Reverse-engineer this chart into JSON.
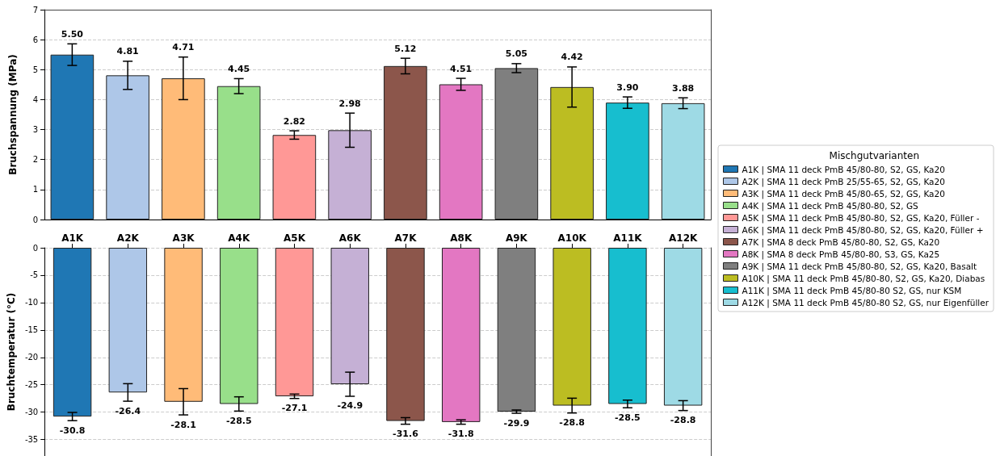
{
  "chart_data": [
    {
      "type": "bar",
      "ylabel": "Bruchspannung (MPa)",
      "categories": [
        null,
        null,
        null,
        null,
        null,
        null,
        null,
        null,
        null,
        null,
        null,
        null
      ],
      "stacked": true,
      "ylim": [
        0,
        7
      ],
      "yticks": [
        0,
        1,
        2,
        3,
        4,
        5,
        6,
        7
      ],
      "grid": "y",
      "tick_labels": "y",
      "legend": "right",
      "legend_title": "Mischgutvarianten",
      "series": [
        {
          "name": "A1K | SMA 11 deck PmB 45/80-80, S2, GS, Ka20",
          "color": "#1f77b4",
          "values": [
            5.5,
            null,
            null,
            null,
            null,
            null,
            null,
            null,
            null,
            null,
            null,
            null
          ],
          "errors": [
            0.36,
            null,
            null,
            null,
            null,
            null,
            null,
            null,
            null,
            null,
            null,
            null
          ],
          "value_labels": [
            "5.50",
            null,
            null,
            null,
            null,
            null,
            null,
            null,
            null,
            null,
            null,
            null
          ]
        },
        {
          "name": "A2K | SMA 11 deck PmB 25/55-65, S2, GS, Ka20",
          "color": "#aec7e8",
          "values": [
            null,
            4.81,
            null,
            null,
            null,
            null,
            null,
            null,
            null,
            null,
            null,
            null
          ],
          "errors": [
            null,
            0.47,
            null,
            null,
            null,
            null,
            null,
            null,
            null,
            null,
            null,
            null
          ],
          "value_labels": [
            null,
            "4.81",
            null,
            null,
            null,
            null,
            null,
            null,
            null,
            null,
            null,
            null
          ]
        },
        {
          "name": "A3K | SMA 11 deck PmB 45/80-65, S2, GS, Ka20",
          "color": "#ffbb78",
          "values": [
            null,
            null,
            4.71,
            null,
            null,
            null,
            null,
            null,
            null,
            null,
            null,
            null
          ],
          "errors": [
            null,
            null,
            0.71,
            null,
            null,
            null,
            null,
            null,
            null,
            null,
            null,
            null
          ],
          "value_labels": [
            null,
            null,
            "4.71",
            null,
            null,
            null,
            null,
            null,
            null,
            null,
            null,
            null
          ]
        },
        {
          "name": "A4K | SMA 11 deck PmB 45/80-80, S2, GS",
          "color": "#98df8a",
          "values": [
            null,
            null,
            null,
            4.45,
            null,
            null,
            null,
            null,
            null,
            null,
            null,
            null
          ],
          "errors": [
            null,
            null,
            null,
            0.25,
            null,
            null,
            null,
            null,
            null,
            null,
            null,
            null
          ],
          "value_labels": [
            null,
            null,
            null,
            "4.45",
            null,
            null,
            null,
            null,
            null,
            null,
            null,
            null
          ]
        },
        {
          "name": "A5K | SMA 11 deck PmB 45/80-80, S2, GS, Ka20, Füller -",
          "color": "#ff9896",
          "values": [
            null,
            null,
            null,
            null,
            2.82,
            null,
            null,
            null,
            null,
            null,
            null,
            null
          ],
          "errors": [
            null,
            null,
            null,
            null,
            0.14,
            null,
            null,
            null,
            null,
            null,
            null,
            null
          ],
          "value_labels": [
            null,
            null,
            null,
            null,
            "2.82",
            null,
            null,
            null,
            null,
            null,
            null,
            null
          ]
        },
        {
          "name": "A6K | SMA 11 deck PmB 45/80-80, S2, GS, Ka20, Füller +",
          "color": "#c5b0d5",
          "values": [
            null,
            null,
            null,
            null,
            null,
            2.98,
            null,
            null,
            null,
            null,
            null,
            null
          ],
          "errors": [
            null,
            null,
            null,
            null,
            null,
            0.57,
            null,
            null,
            null,
            null,
            null,
            null
          ],
          "value_labels": [
            null,
            null,
            null,
            null,
            null,
            "2.98",
            null,
            null,
            null,
            null,
            null,
            null
          ]
        },
        {
          "name": "A7K | SMA 8 deck PmB 45/80-80, S2, GS, Ka20",
          "color": "#8c564b",
          "values": [
            null,
            null,
            null,
            null,
            null,
            null,
            5.12,
            null,
            null,
            null,
            null,
            null
          ],
          "errors": [
            null,
            null,
            null,
            null,
            null,
            null,
            0.26,
            null,
            null,
            null,
            null,
            null
          ],
          "value_labels": [
            null,
            null,
            null,
            null,
            null,
            null,
            "5.12",
            null,
            null,
            null,
            null,
            null
          ]
        },
        {
          "name": "A8K | SMA 8 deck PmB 45/80-80, S3, GS, Ka25",
          "color": "#e377c2",
          "values": [
            null,
            null,
            null,
            null,
            null,
            null,
            null,
            4.51,
            null,
            null,
            null,
            null
          ],
          "errors": [
            null,
            null,
            null,
            null,
            null,
            null,
            null,
            0.2,
            null,
            null,
            null,
            null
          ],
          "value_labels": [
            null,
            null,
            null,
            null,
            null,
            null,
            null,
            "4.51",
            null,
            null,
            null,
            null
          ]
        },
        {
          "name": "A9K | SMA 11 deck PmB 45/80-80, S2, GS, Ka20, Basalt",
          "color": "#7f7f7f",
          "values": [
            null,
            null,
            null,
            null,
            null,
            null,
            null,
            null,
            5.05,
            null,
            null,
            null
          ],
          "errors": [
            null,
            null,
            null,
            null,
            null,
            null,
            null,
            null,
            0.15,
            null,
            null,
            null
          ],
          "value_labels": [
            null,
            null,
            null,
            null,
            null,
            null,
            null,
            null,
            "5.05",
            null,
            null,
            null
          ]
        },
        {
          "name": "A10K | SMA 11 deck PmB 45/80-80, S2, GS, Ka20, Diabas",
          "color": "#bcbd22",
          "values": [
            null,
            null,
            null,
            null,
            null,
            null,
            null,
            null,
            null,
            4.42,
            null,
            null
          ],
          "errors": [
            null,
            null,
            null,
            null,
            null,
            null,
            null,
            null,
            null,
            0.67,
            null,
            null
          ],
          "value_labels": [
            null,
            null,
            null,
            null,
            null,
            null,
            null,
            null,
            null,
            "4.42",
            null,
            null
          ]
        },
        {
          "name": "A11K | SMA 11 deck PmB 45/80-80 S2, GS, nur KSM",
          "color": "#17becf",
          "values": [
            null,
            null,
            null,
            null,
            null,
            null,
            null,
            null,
            null,
            null,
            3.9,
            null
          ],
          "errors": [
            null,
            null,
            null,
            null,
            null,
            null,
            null,
            null,
            null,
            null,
            0.19,
            null
          ],
          "value_labels": [
            null,
            null,
            null,
            null,
            null,
            null,
            null,
            null,
            null,
            null,
            "3.90",
            null
          ]
        },
        {
          "name": "A12K | SMA 11 deck PmB 45/80-80 S2, GS, nur Eigenfüller",
          "color": "#9edae5",
          "values": [
            null,
            null,
            null,
            null,
            null,
            null,
            null,
            null,
            null,
            null,
            null,
            3.88
          ],
          "errors": [
            null,
            null,
            null,
            null,
            null,
            null,
            null,
            null,
            null,
            null,
            null,
            0.18
          ],
          "value_labels": [
            null,
            null,
            null,
            null,
            null,
            null,
            null,
            null,
            null,
            null,
            null,
            "3.88"
          ]
        }
      ]
    },
    {
      "type": "bar",
      "ylabel": "Bruchtemperatur (°C)",
      "categories": [
        "A1K",
        "A2K",
        "A3K",
        "A4K",
        "A5K",
        "A6K",
        "A7K",
        "A8K",
        "A9K",
        "A10K",
        "A11K",
        "A12K"
      ],
      "ylim": [
        -38,
        0
      ],
      "yticks": [
        0,
        -5,
        -10,
        -15,
        -20,
        -25,
        -30,
        -35
      ],
      "grid": "y",
      "data_labels": true,
      "colors": [
        "#1f77b4",
        "#aec7e8",
        "#ffbb78",
        "#98df8a",
        "#ff9896",
        "#c5b0d5",
        "#8c564b",
        "#e377c2",
        "#7f7f7f",
        "#bcbd22",
        "#17becf",
        "#9edae5"
      ],
      "values": [
        -30.8,
        -26.4,
        -28.1,
        -28.5,
        -27.1,
        -24.9,
        -31.6,
        -31.8,
        -29.9,
        -28.8,
        -28.5,
        -28.8
      ],
      "errors": [
        0.75,
        1.6,
        2.4,
        1.3,
        0.4,
        2.2,
        0.6,
        0.4,
        0.3,
        1.35,
        0.7,
        0.9
      ]
    }
  ]
}
